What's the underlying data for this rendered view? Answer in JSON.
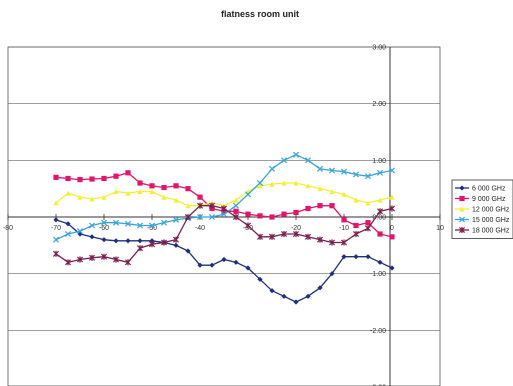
{
  "chart_data": {
    "type": "line",
    "title": "flatness room unit",
    "xlim": [
      -80,
      10
    ],
    "ylim": [
      -3,
      3
    ],
    "x_ticks": [
      -80,
      -70,
      -60,
      -50,
      -40,
      -30,
      -20,
      -10,
      0,
      10
    ],
    "x_tick_labels": [
      "-80",
      "-70",
      "-60",
      "-50",
      "-40",
      "-30",
      "-20",
      "-10",
      "0",
      "10"
    ],
    "y_ticks": [
      -3,
      -2,
      -1,
      0,
      1,
      2,
      3
    ],
    "y_tick_labels": [
      "-3.00",
      "-2.00",
      "-1.00",
      "0.00",
      "1.00",
      "2.00",
      "3.00"
    ],
    "grid": true,
    "legend_position": "right",
    "x": [
      -70,
      -67.5,
      -65,
      -62.5,
      -60,
      -57.5,
      -55,
      -52.5,
      -50,
      -47.5,
      -45,
      -42.5,
      -40,
      -37.5,
      -35,
      -32.5,
      -30,
      -27.5,
      -25,
      -22.5,
      -20,
      -17.5,
      -15,
      -12.5,
      -10,
      -7.5,
      -5,
      -2.5,
      0
    ],
    "series": [
      {
        "name": "6 000 GHz",
        "color": "#1f2f7a",
        "marker": "diamond",
        "values": [
          -0.05,
          -0.12,
          -0.3,
          -0.35,
          -0.4,
          -0.42,
          -0.42,
          -0.42,
          -0.42,
          -0.45,
          -0.5,
          -0.6,
          -0.85,
          -0.85,
          -0.75,
          -0.8,
          -0.9,
          -1.1,
          -1.3,
          -1.4,
          -1.5,
          -1.4,
          -1.25,
          -1.0,
          -0.7,
          -0.7,
          -0.7,
          -0.8,
          -0.9
        ]
      },
      {
        "name": "9 000 GHz",
        "color": "#e0156b",
        "marker": "square",
        "values": [
          0.7,
          0.68,
          0.66,
          0.67,
          0.68,
          0.72,
          0.78,
          0.6,
          0.55,
          0.52,
          0.55,
          0.5,
          0.35,
          0.15,
          0.1,
          0.1,
          0.05,
          0.02,
          0.0,
          0.05,
          0.08,
          0.15,
          0.2,
          0.2,
          -0.05,
          -0.15,
          -0.1,
          -0.3,
          -0.35
        ]
      },
      {
        "name": "12 000 GHz",
        "color": "#f2ef3c",
        "marker": "triangle",
        "values": [
          0.25,
          0.42,
          0.35,
          0.32,
          0.35,
          0.45,
          0.42,
          0.45,
          0.45,
          0.35,
          0.3,
          0.2,
          0.2,
          0.25,
          0.2,
          0.3,
          0.45,
          0.55,
          0.58,
          0.6,
          0.6,
          0.55,
          0.5,
          0.45,
          0.4,
          0.3,
          0.25,
          0.3,
          0.35
        ]
      },
      {
        "name": "15 000 GHz",
        "color": "#3aa3d6",
        "marker": "x",
        "values": [
          -0.4,
          -0.3,
          -0.25,
          -0.15,
          -0.1,
          -0.1,
          -0.12,
          -0.15,
          -0.15,
          -0.1,
          -0.05,
          -0.02,
          0.0,
          0.0,
          0.05,
          0.2,
          0.4,
          0.6,
          0.85,
          1.0,
          1.1,
          1.0,
          0.85,
          0.82,
          0.8,
          0.75,
          0.72,
          0.78,
          0.82
        ]
      },
      {
        "name": "18 000 GHz",
        "color": "#7a1f4f",
        "marker": "star",
        "values": [
          -0.65,
          -0.8,
          -0.75,
          -0.72,
          -0.7,
          -0.75,
          -0.8,
          -0.55,
          -0.48,
          -0.45,
          -0.4,
          0.0,
          0.2,
          0.2,
          0.15,
          0.0,
          -0.15,
          -0.35,
          -0.35,
          -0.3,
          -0.3,
          -0.35,
          -0.4,
          -0.45,
          -0.45,
          -0.3,
          -0.2,
          0.1,
          0.15
        ]
      }
    ]
  }
}
